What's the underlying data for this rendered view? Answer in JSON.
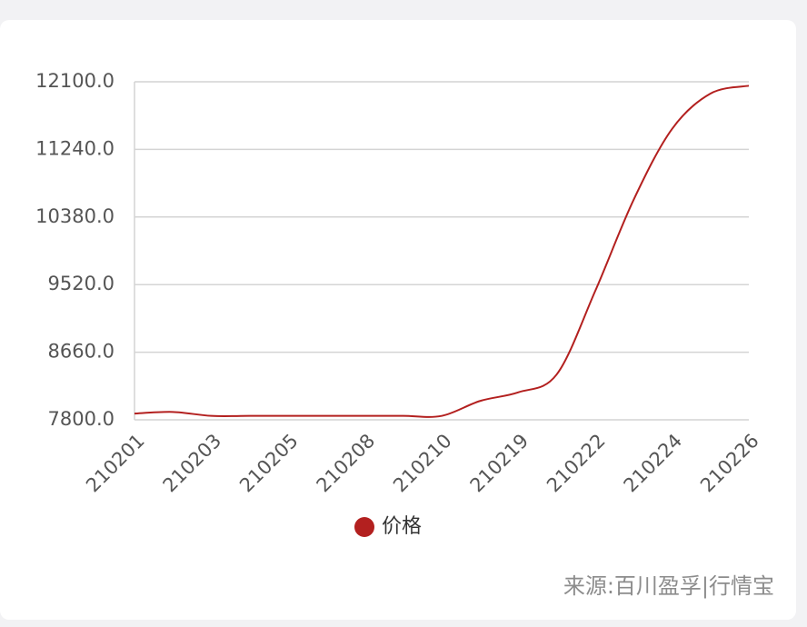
{
  "chart_data": {
    "type": "line",
    "categories": [
      "210201",
      null,
      "210203",
      null,
      "210205",
      null,
      "210208",
      null,
      "210210",
      null,
      "210219",
      null,
      "210222",
      null,
      "210224",
      null,
      "210226"
    ],
    "series": [
      {
        "name": "价格",
        "color": "#b3201f",
        "values": [
          7880,
          7900,
          7850,
          7850,
          7850,
          7850,
          7850,
          7850,
          7850,
          8040,
          8150,
          8380,
          9440,
          10600,
          11500,
          11950,
          12050
        ]
      }
    ],
    "ylim": [
      7800,
      12100
    ],
    "yticks": [
      {
        "value": 7800,
        "label": "7800.0"
      },
      {
        "value": 8660,
        "label": "8660.0"
      },
      {
        "value": 9520,
        "label": "9520.0"
      },
      {
        "value": 10380,
        "label": "10380.0"
      },
      {
        "value": 11240,
        "label": "11240.0"
      },
      {
        "value": 12100,
        "label": "12100.0"
      }
    ],
    "grid": true,
    "legend": "bottom",
    "source": "来源:百川盈孚|行情宝"
  }
}
